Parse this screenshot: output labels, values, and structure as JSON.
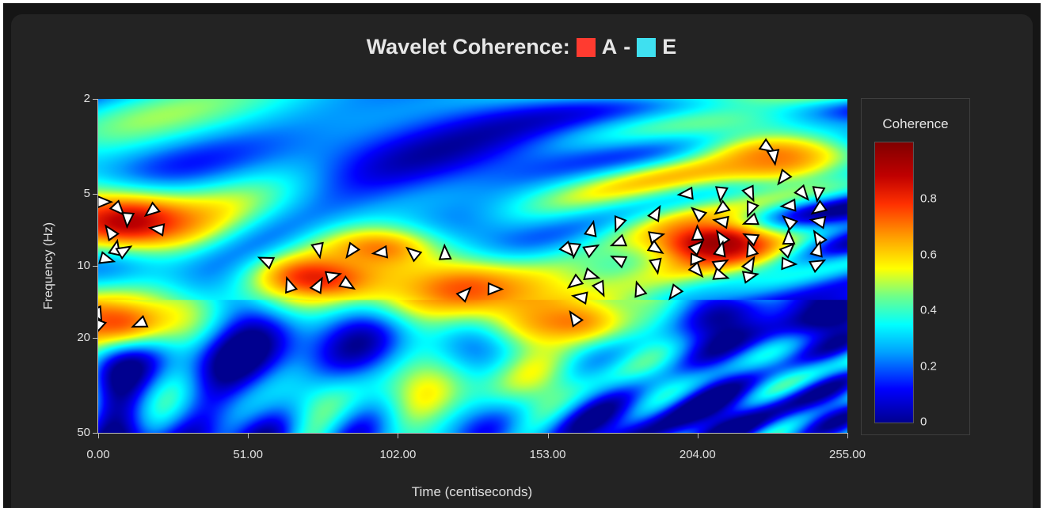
{
  "title": {
    "prefix": "Wavelet Coherence:",
    "series_a": "A",
    "separator": "-",
    "series_b": "E",
    "color_a": "#ff3b30",
    "color_b": "#3fe0f0"
  },
  "axes": {
    "xlabel": "Time (centiseconds)",
    "ylabel": "Frequency (Hz)",
    "xticks": [
      "0.00",
      "51.00",
      "102.00",
      "153.00",
      "204.00",
      "255.00"
    ],
    "yticks": [
      "2",
      "5",
      "10",
      "20",
      "50"
    ]
  },
  "colorbar": {
    "title": "Coherence",
    "ticks": [
      "0.8",
      "0.6",
      "0.4",
      "0.2",
      "0"
    ],
    "tick_values": [
      0.8,
      0.6,
      0.4,
      0.2,
      0
    ]
  },
  "chart_data": {
    "type": "heatmap",
    "title": "Wavelet Coherence: A - E",
    "xlabel": "Time (centiseconds)",
    "ylabel": "Frequency (Hz)",
    "xlim": [
      0,
      255
    ],
    "ylim": [
      2,
      50
    ],
    "y_scale": "log",
    "color_scale": "jet",
    "zlim": [
      0,
      1
    ],
    "regions": [
      {
        "t": 10,
        "f": 6.5,
        "coherence": 0.9
      },
      {
        "t": 5,
        "f": 17,
        "coherence": 0.75
      },
      {
        "t": 75,
        "f": 11,
        "coherence": 0.85
      },
      {
        "t": 95,
        "f": 8.5,
        "coherence": 0.7
      },
      {
        "t": 125,
        "f": 12.5,
        "coherence": 0.75
      },
      {
        "t": 210,
        "f": 8,
        "coherence": 0.95
      },
      {
        "t": 160,
        "f": 17,
        "coherence": 0.7
      },
      {
        "t": 230,
        "f": 3.5,
        "coherence": 0.7
      }
    ],
    "phase_arrows": [
      [
        2,
        5.4
      ],
      [
        7,
        5.8
      ],
      [
        10,
        6.4
      ],
      [
        18,
        5.9
      ],
      [
        20,
        7
      ],
      [
        4,
        7.2
      ],
      [
        6,
        8.4
      ],
      [
        9,
        8.6
      ],
      [
        3,
        9.4
      ],
      [
        0,
        16
      ],
      [
        0,
        18
      ],
      [
        14,
        17.5
      ],
      [
        57,
        9.5
      ],
      [
        65,
        12
      ],
      [
        75,
        12
      ],
      [
        80,
        11
      ],
      [
        85,
        12
      ],
      [
        75,
        8.6
      ],
      [
        86,
        8.7
      ],
      [
        96,
        8.8
      ],
      [
        107,
        8.8
      ],
      [
        118,
        8.8
      ],
      [
        125,
        13
      ],
      [
        135,
        12.5
      ],
      [
        160,
        8.6
      ],
      [
        162,
        8.6
      ],
      [
        162,
        11.8
      ],
      [
        164,
        13.5
      ],
      [
        162,
        16.5
      ],
      [
        168,
        7
      ],
      [
        168,
        8.5
      ],
      [
        168,
        11
      ],
      [
        171,
        12.5
      ],
      [
        177,
        6.7
      ],
      [
        177,
        8
      ],
      [
        177,
        9.4
      ],
      [
        184,
        12.5
      ],
      [
        190,
        6
      ],
      [
        190,
        7.5
      ],
      [
        190,
        8.5
      ],
      [
        190,
        10
      ],
      [
        196,
        13
      ],
      [
        200,
        5
      ],
      [
        204,
        6
      ],
      [
        204,
        7.3
      ],
      [
        204,
        8.3
      ],
      [
        204,
        9.4
      ],
      [
        204,
        10.5
      ],
      [
        212,
        5
      ],
      [
        212,
        5.8
      ],
      [
        212,
        6.5
      ],
      [
        212,
        7.6
      ],
      [
        212,
        8.5
      ],
      [
        212,
        9.8
      ],
      [
        212,
        11
      ],
      [
        222,
        5
      ],
      [
        222,
        5.8
      ],
      [
        222,
        6.5
      ],
      [
        222,
        7.6
      ],
      [
        222,
        8.5
      ],
      [
        222,
        9.8
      ],
      [
        222,
        11
      ],
      [
        228,
        3.2
      ],
      [
        230,
        3.5
      ],
      [
        233,
        4.3
      ],
      [
        235,
        5.6
      ],
      [
        235,
        6.5
      ],
      [
        235,
        7.6
      ],
      [
        235,
        8.5
      ],
      [
        235,
        9.8
      ],
      [
        240,
        5
      ],
      [
        245,
        5
      ],
      [
        245,
        5.8
      ],
      [
        245,
        6.5
      ],
      [
        245,
        7.6
      ],
      [
        245,
        8.5
      ],
      [
        245,
        9.8
      ]
    ]
  }
}
